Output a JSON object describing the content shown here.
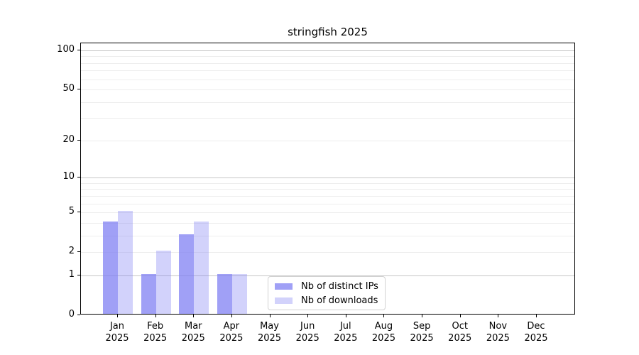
{
  "chart_data": {
    "type": "bar",
    "title": "stringfish 2025",
    "categories": [
      "Jan 2025",
      "Feb 2025",
      "Mar 2025",
      "Apr 2025",
      "May 2025",
      "Jun 2025",
      "Jul 2025",
      "Aug 2025",
      "Sep 2025",
      "Oct 2025",
      "Nov 2025",
      "Dec 2025"
    ],
    "months": [
      "Jan",
      "Feb",
      "Mar",
      "Apr",
      "May",
      "Jun",
      "Jul",
      "Aug",
      "Sep",
      "Oct",
      "Nov",
      "Dec"
    ],
    "year_label": "2025",
    "series": [
      {
        "name": "Nb of distinct IPs",
        "color": "#7c7cf3",
        "alpha": 0.72,
        "values": [
          4,
          1,
          3,
          1,
          0,
          0,
          0,
          0,
          0,
          0,
          0,
          0
        ]
      },
      {
        "name": "Nb of downloads",
        "color": "#7c7cf3",
        "alpha": 0.34,
        "values": [
          5,
          2,
          4,
          1,
          0,
          0,
          0,
          0,
          0,
          0,
          0,
          0
        ]
      }
    ],
    "xlabel": "",
    "ylabel": "",
    "yscale": "log1p",
    "ylim": [
      0,
      113
    ],
    "y_major_ticks": [
      0,
      1,
      2,
      5,
      10,
      20,
      50,
      100
    ],
    "y_decade_gridlines": [
      1,
      10,
      100
    ],
    "y_minor_gridlines": [
      2,
      3,
      4,
      5,
      6,
      7,
      8,
      9,
      20,
      30,
      40,
      50,
      60,
      70,
      80,
      90
    ],
    "grid": true,
    "legend_position": "inside lower center"
  },
  "colors": {
    "background": "#ffffff",
    "spine": "#000000",
    "grid_decade": "#c6c6c6",
    "grid_light": "#ededed",
    "legend_border": "#d2d2d2",
    "text": "#000000"
  }
}
